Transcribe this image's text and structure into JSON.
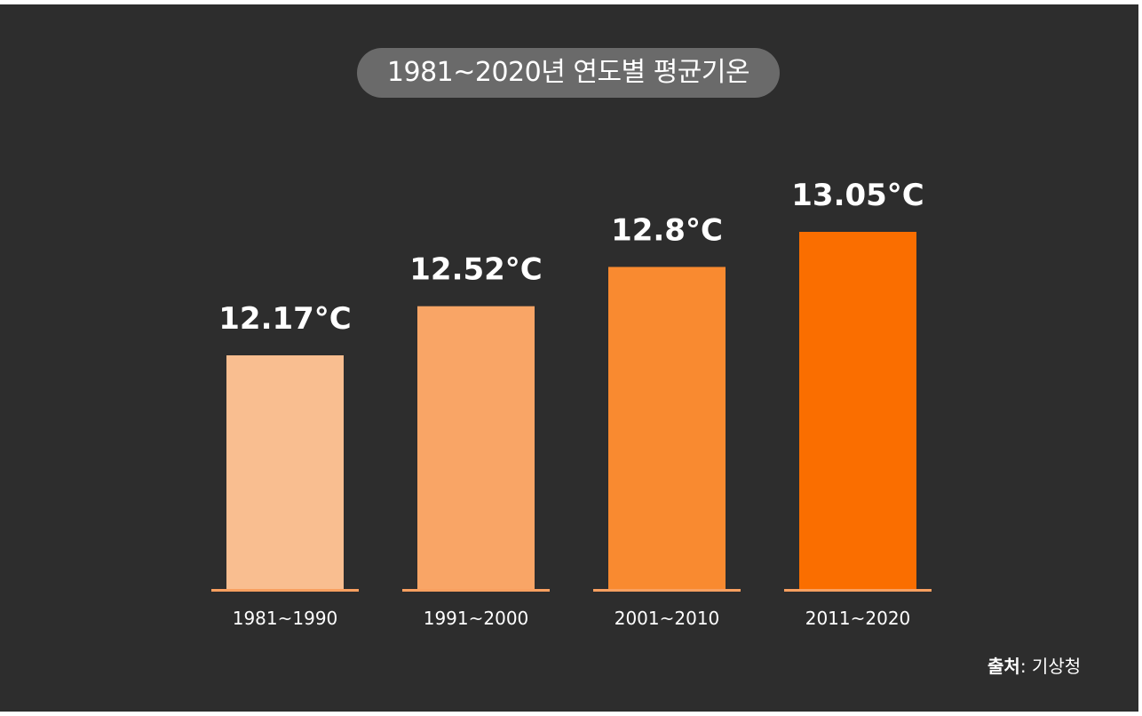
{
  "chart_data": {
    "type": "bar",
    "title": "1981~2020년 연도별 평균기온",
    "categories": [
      "1981~1990",
      "1991~2000",
      "2001~2010",
      "2011~2020"
    ],
    "values": [
      12.17,
      12.52,
      12.8,
      13.05
    ],
    "value_labels": [
      "12.17°C",
      "12.52°C",
      "12.8°C",
      "13.05°C"
    ],
    "bar_colors": [
      "#f9be90",
      "#f9a566",
      "#f98a30",
      "#fa6e00"
    ],
    "baseline_color": "#f9a060",
    "background_color": "#2d2d2d",
    "grid": false,
    "legend": "none"
  },
  "source": {
    "label": "출처",
    "separator": ":",
    "value": "기상청"
  }
}
